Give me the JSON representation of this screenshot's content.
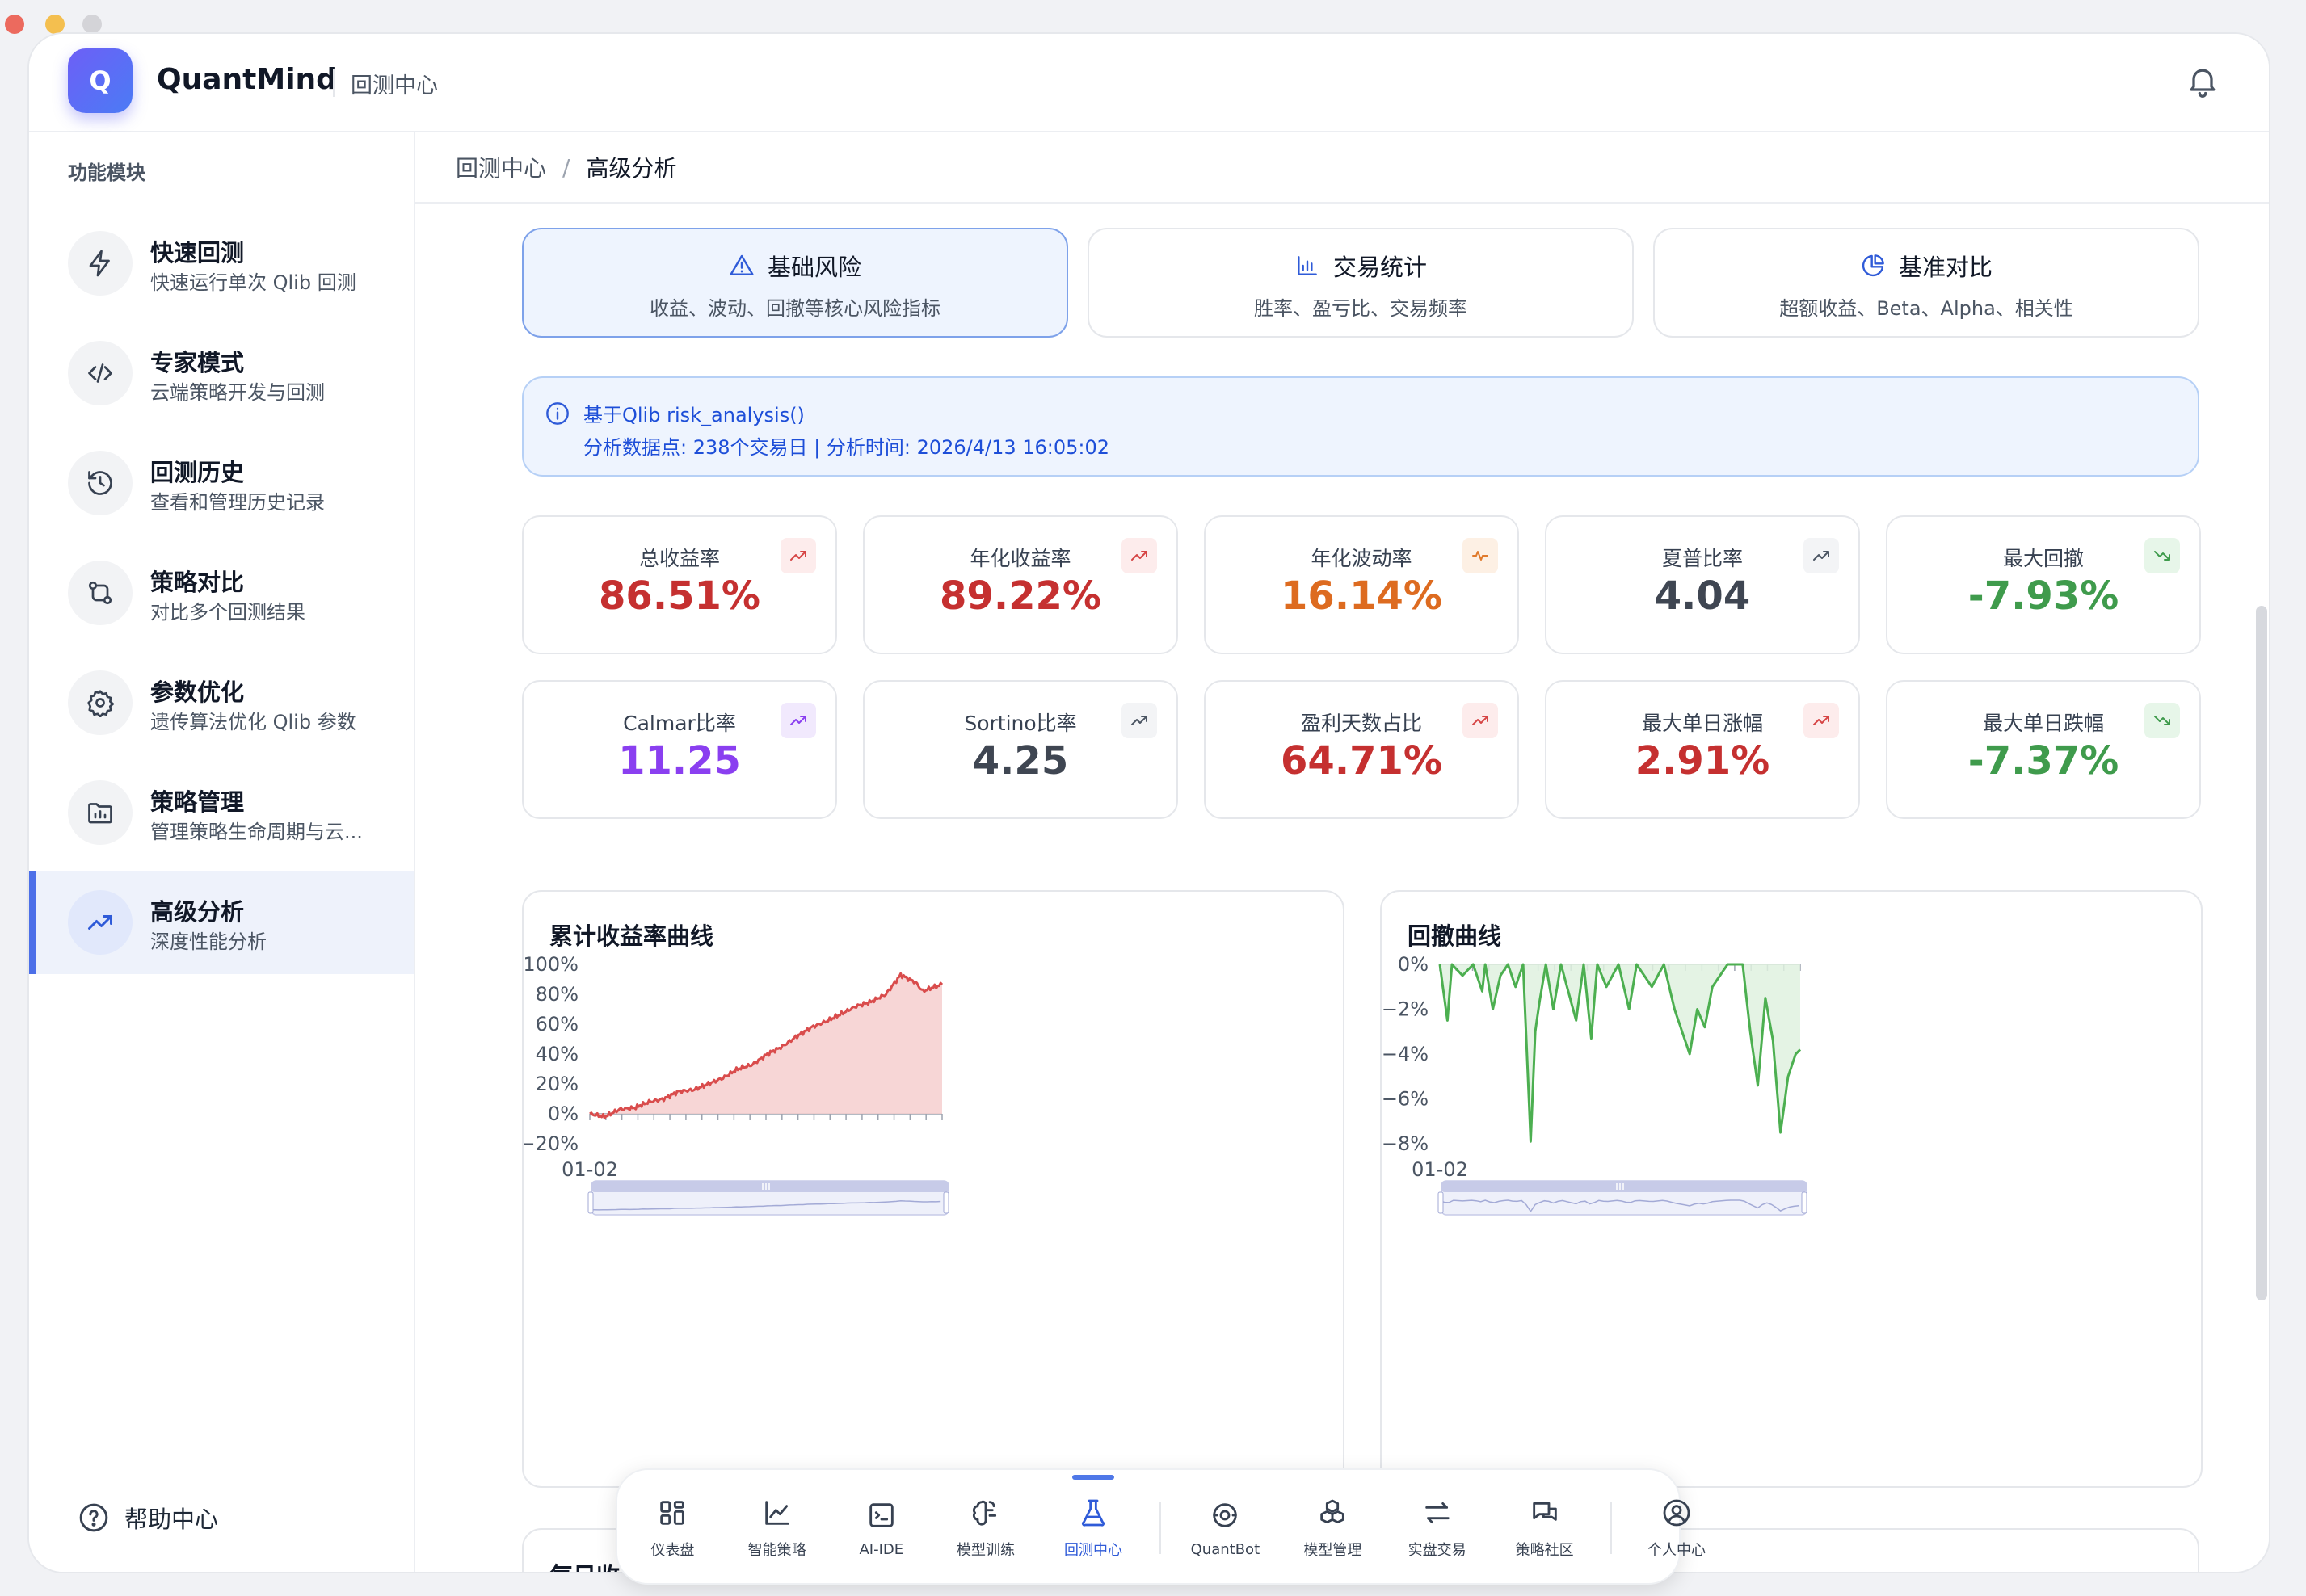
{
  "window_controls": {
    "close_color": "#ec6a5e",
    "minimize_color": "#f4bf4f",
    "maximize_color": "#d4d4d8"
  },
  "header": {
    "logo_letter": "Q",
    "brand": "QuantMind",
    "subtitle": "回测中心",
    "bell_icon": "bell-icon"
  },
  "sidebar": {
    "title": "功能模块",
    "items": [
      {
        "label": "快速回测",
        "desc": "快速运行单次 Qlib 回测",
        "icon": "lightning-icon",
        "active": false
      },
      {
        "label": "专家模式",
        "desc": "云端策略开发与回测",
        "icon": "code-icon",
        "active": false
      },
      {
        "label": "回测历史",
        "desc": "查看和管理历史记录",
        "icon": "history-icon",
        "active": false
      },
      {
        "label": "策略对比",
        "desc": "对比多个回测结果",
        "icon": "compare-icon",
        "active": false
      },
      {
        "label": "参数优化",
        "desc": "遗传算法优化 Qlib 参数",
        "icon": "gear-icon",
        "active": false
      },
      {
        "label": "策略管理",
        "desc": "管理策略生命周期与云...",
        "icon": "folder-chart-icon",
        "active": false
      },
      {
        "label": "高级分析",
        "desc": "深度性能分析",
        "icon": "trend-up-icon",
        "active": true
      }
    ],
    "help": "帮助中心"
  },
  "breadcrumb": {
    "parent": "回测中心",
    "separator": "/",
    "current": "高级分析"
  },
  "tabs": [
    {
      "label": "基础风险",
      "desc": "收益、波动、回撤等核心风险指标",
      "icon": "warning-triangle-icon",
      "active": true
    },
    {
      "label": "交易统计",
      "desc": "胜率、盈亏比、交易频率",
      "icon": "bar-chart-icon",
      "active": false
    },
    {
      "label": "基准对比",
      "desc": "超额收益、Beta、Alpha、相关性",
      "icon": "pie-chart-icon",
      "active": false
    }
  ],
  "info": {
    "line1": "基于Qlib risk_analysis()",
    "line2": "分析数据点: 238个交易日 | 分析时间: 2026/4/13 16:05:02"
  },
  "metrics": [
    {
      "label": "总收益率",
      "value": "86.51%",
      "color": "#c53030",
      "icon": "trend-up-icon",
      "badge_bg": "#fdecec",
      "icon_color": "#d64545"
    },
    {
      "label": "年化收益率",
      "value": "89.22%",
      "color": "#c53030",
      "icon": "trend-up-icon",
      "badge_bg": "#fdecec",
      "icon_color": "#d64545"
    },
    {
      "label": "年化波动率",
      "value": "16.14%",
      "color": "#dd6b20",
      "icon": "pulse-icon",
      "badge_bg": "#fdf0e4",
      "icon_color": "#e07a2c"
    },
    {
      "label": "夏普比率",
      "value": "4.04",
      "color": "#3f4652",
      "icon": "trend-up-icon",
      "badge_bg": "#f3f4f6",
      "icon_color": "#4b5563"
    },
    {
      "label": "最大回撤",
      "value": "-7.93%",
      "color": "#3f9b4c",
      "icon": "trend-down-icon",
      "badge_bg": "#e7f6e9",
      "icon_color": "#3f9b4c"
    },
    {
      "label": "Calmar比率",
      "value": "11.25",
      "color": "#8a3ff0",
      "icon": "trend-up-icon",
      "badge_bg": "#f1e9fd",
      "icon_color": "#8a3ff0"
    },
    {
      "label": "Sortino比率",
      "value": "4.25",
      "color": "#3f4652",
      "icon": "trend-up-icon",
      "badge_bg": "#f3f4f6",
      "icon_color": "#4b5563"
    },
    {
      "label": "盈利天数占比",
      "value": "64.71%",
      "color": "#c53030",
      "icon": "trend-up-icon",
      "badge_bg": "#fdecec",
      "icon_color": "#d64545"
    },
    {
      "label": "最大单日涨幅",
      "value": "2.91%",
      "color": "#c53030",
      "icon": "trend-up-icon",
      "badge_bg": "#fdecec",
      "icon_color": "#d64545"
    },
    {
      "label": "最大单日跌幅",
      "value": "-7.37%",
      "color": "#3f9b4c",
      "icon": "trend-down-icon",
      "badge_bg": "#e7f6e9",
      "icon_color": "#3f9b4c"
    }
  ],
  "charts": {
    "returns_title": "累计收益率曲线",
    "drawdown_title": "回撤曲线",
    "daily_title": "每日收益"
  },
  "chart_data": [
    {
      "type": "area",
      "title": "累计收益率曲线",
      "xlabel": "",
      "ylabel": "",
      "x_tick_labels": [
        "01-02"
      ],
      "y_ticks": [
        "100%",
        "80%",
        "60%",
        "40%",
        "20%",
        "0%",
        "−20%"
      ],
      "ylim": [
        -20,
        100
      ],
      "grid": false,
      "color": "#d94c4c",
      "fill": "#f6cfcf",
      "points": [
        [
          0,
          0
        ],
        [
          10,
          -2
        ],
        [
          20,
          3
        ],
        [
          30,
          4
        ],
        [
          40,
          8
        ],
        [
          50,
          10
        ],
        [
          60,
          15
        ],
        [
          70,
          16
        ],
        [
          80,
          20
        ],
        [
          90,
          24
        ],
        [
          100,
          30
        ],
        [
          110,
          33
        ],
        [
          120,
          40
        ],
        [
          130,
          45
        ],
        [
          140,
          52
        ],
        [
          150,
          58
        ],
        [
          160,
          62
        ],
        [
          170,
          67
        ],
        [
          180,
          72
        ],
        [
          190,
          75
        ],
        [
          200,
          80
        ],
        [
          210,
          93
        ],
        [
          220,
          88
        ],
        [
          225,
          82
        ],
        [
          230,
          84
        ],
        [
          238,
          86.5
        ]
      ]
    },
    {
      "type": "area",
      "title": "回撤曲线",
      "xlabel": "",
      "ylabel": "",
      "x_tick_labels": [
        "01-02"
      ],
      "y_ticks": [
        "0%",
        "−2%",
        "−4%",
        "−6%",
        "−8%"
      ],
      "ylim": [
        -8,
        0
      ],
      "grid": false,
      "color": "#4caf50",
      "fill": "#dff1df",
      "points": [
        [
          0,
          0
        ],
        [
          5,
          -2.5
        ],
        [
          8,
          0
        ],
        [
          15,
          -0.5
        ],
        [
          22,
          0
        ],
        [
          28,
          -1.2
        ],
        [
          30,
          0
        ],
        [
          35,
          -2
        ],
        [
          40,
          -0.5
        ],
        [
          45,
          0
        ],
        [
          50,
          -1
        ],
        [
          55,
          0
        ],
        [
          60,
          -7.9
        ],
        [
          63,
          -3
        ],
        [
          66,
          -1.6
        ],
        [
          70,
          0
        ],
        [
          75,
          -2
        ],
        [
          80,
          0
        ],
        [
          90,
          -2.5
        ],
        [
          95,
          0
        ],
        [
          100,
          -3.3
        ],
        [
          104,
          0
        ],
        [
          110,
          -1
        ],
        [
          118,
          0
        ],
        [
          125,
          -2
        ],
        [
          130,
          0
        ],
        [
          140,
          -1
        ],
        [
          148,
          0
        ],
        [
          155,
          -2
        ],
        [
          160,
          -3
        ],
        [
          165,
          -4
        ],
        [
          170,
          -2
        ],
        [
          175,
          -2.8
        ],
        [
          180,
          -1
        ],
        [
          190,
          0
        ],
        [
          200,
          0
        ],
        [
          205,
          -3
        ],
        [
          210,
          -5.4
        ],
        [
          215,
          -1.5
        ],
        [
          220,
          -3.4
        ],
        [
          225,
          -7.5
        ],
        [
          230,
          -5
        ],
        [
          235,
          -4
        ],
        [
          238,
          -3.8
        ]
      ]
    }
  ],
  "dock": [
    {
      "label": "仪表盘",
      "icon": "grid-icon",
      "active": false
    },
    {
      "label": "智能策略",
      "icon": "line-chart-icon",
      "active": false
    },
    {
      "label": "AI-IDE",
      "icon": "terminal-icon",
      "active": false
    },
    {
      "label": "模型训练",
      "icon": "brain-icon",
      "active": false
    },
    {
      "label": "回测中心",
      "icon": "flask-icon",
      "active": true
    },
    {
      "label": "QuantBot",
      "icon": "bot-icon",
      "active": false
    },
    {
      "label": "模型管理",
      "icon": "cubes-icon",
      "active": false
    },
    {
      "label": "实盘交易",
      "icon": "swap-icon",
      "active": false
    },
    {
      "label": "策略社区",
      "icon": "chat-icon",
      "active": false
    },
    {
      "label": "个人中心",
      "icon": "user-circle-icon",
      "active": false
    }
  ]
}
